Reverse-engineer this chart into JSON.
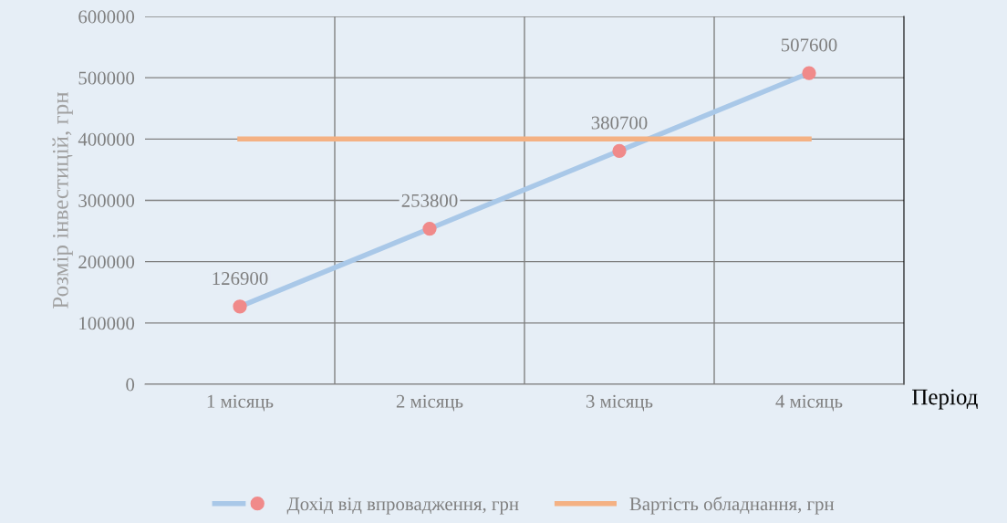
{
  "chart_data": {
    "type": "line",
    "xlabel": "Період",
    "ylabel": "Розмір інвестицій, грн",
    "categories": [
      "1 місяць",
      "2 місяць",
      "3 місяць",
      "4 місяць"
    ],
    "series": [
      {
        "name": "Дохід від впровадження, грн",
        "color": "#a9c8e8",
        "marker": "circle",
        "colors": [
          "#f08a8a",
          "#f08a8a",
          "#f08a8a",
          "#f08a8a"
        ],
        "values": [
          126900,
          253800,
          380700,
          507600
        ],
        "value_labels": [
          "126900",
          "253800",
          "380700",
          "507600"
        ]
      },
      {
        "name": "Вартість обладнання, грн",
        "color": "#f4b183",
        "marker": "none",
        "values": [
          400000,
          400000,
          400000,
          400000
        ]
      }
    ],
    "ylim": [
      0,
      600000
    ],
    "yticks": [
      0,
      100000,
      200000,
      300000,
      400000,
      500000,
      600000
    ],
    "grid": true,
    "legend": "bottom"
  }
}
